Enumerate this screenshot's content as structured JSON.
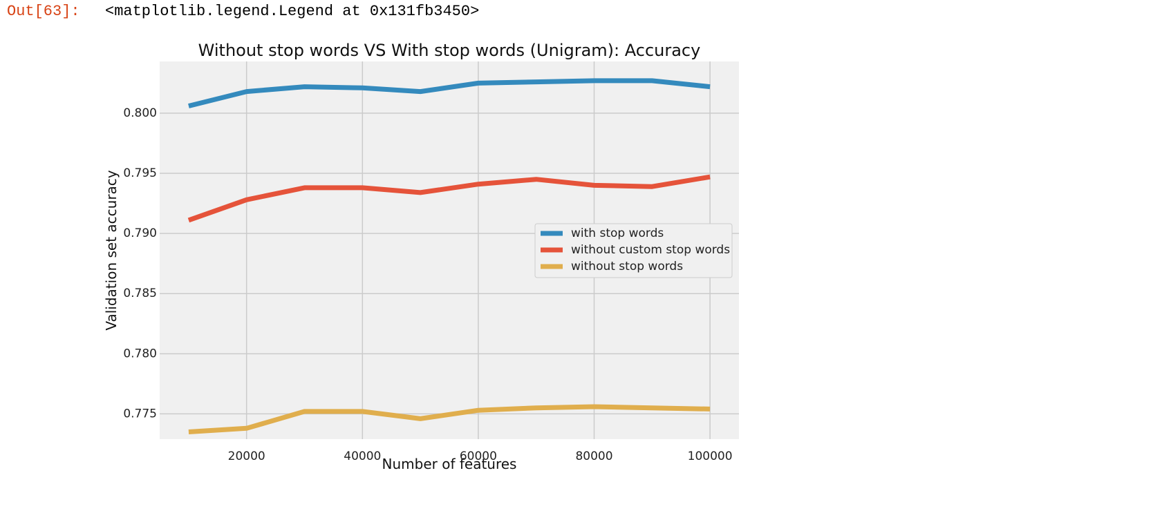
{
  "output": {
    "prompt": "Out[63]:",
    "text": "<matplotlib.legend.Legend at 0x131fb3450>"
  },
  "chart_data": {
    "type": "line",
    "title": "Without stop words VS With stop words (Unigram): Accuracy",
    "xlabel": "Number of features",
    "ylabel": "Validation set accuracy",
    "xlim": [
      5000,
      105000
    ],
    "ylim": [
      0.7729,
      0.8043
    ],
    "xticks": [
      20000,
      40000,
      60000,
      80000,
      100000
    ],
    "xtick_labels": [
      "20000",
      "40000",
      "60000",
      "80000",
      "100000"
    ],
    "yticks": [
      0.775,
      0.78,
      0.785,
      0.79,
      0.795,
      0.8
    ],
    "ytick_labels": [
      "0.775",
      "0.780",
      "0.785",
      "0.790",
      "0.795",
      "0.800"
    ],
    "grid": true,
    "background": "#f0f0f0",
    "grid_color": "#cbcbcb",
    "legend_position": "center-right",
    "x": [
      10000,
      20000,
      30000,
      40000,
      50000,
      60000,
      70000,
      80000,
      90000,
      100000
    ],
    "series": [
      {
        "name": "with stop words",
        "color": "#348abd",
        "values": [
          0.8006,
          0.8018,
          0.8022,
          0.8021,
          0.8018,
          0.8025,
          0.8026,
          0.8027,
          0.8027,
          0.8022
        ]
      },
      {
        "name": "without custom stop words",
        "color": "#e5533a",
        "values": [
          0.7911,
          0.7928,
          0.7938,
          0.7938,
          0.7934,
          0.7941,
          0.7945,
          0.794,
          0.7939,
          0.7947
        ]
      },
      {
        "name": "without stop words",
        "color": "#e0ae4d",
        "values": [
          0.7735,
          0.7738,
          0.7752,
          0.7752,
          0.7746,
          0.7753,
          0.7755,
          0.7756,
          0.7755,
          0.7754
        ]
      }
    ]
  }
}
